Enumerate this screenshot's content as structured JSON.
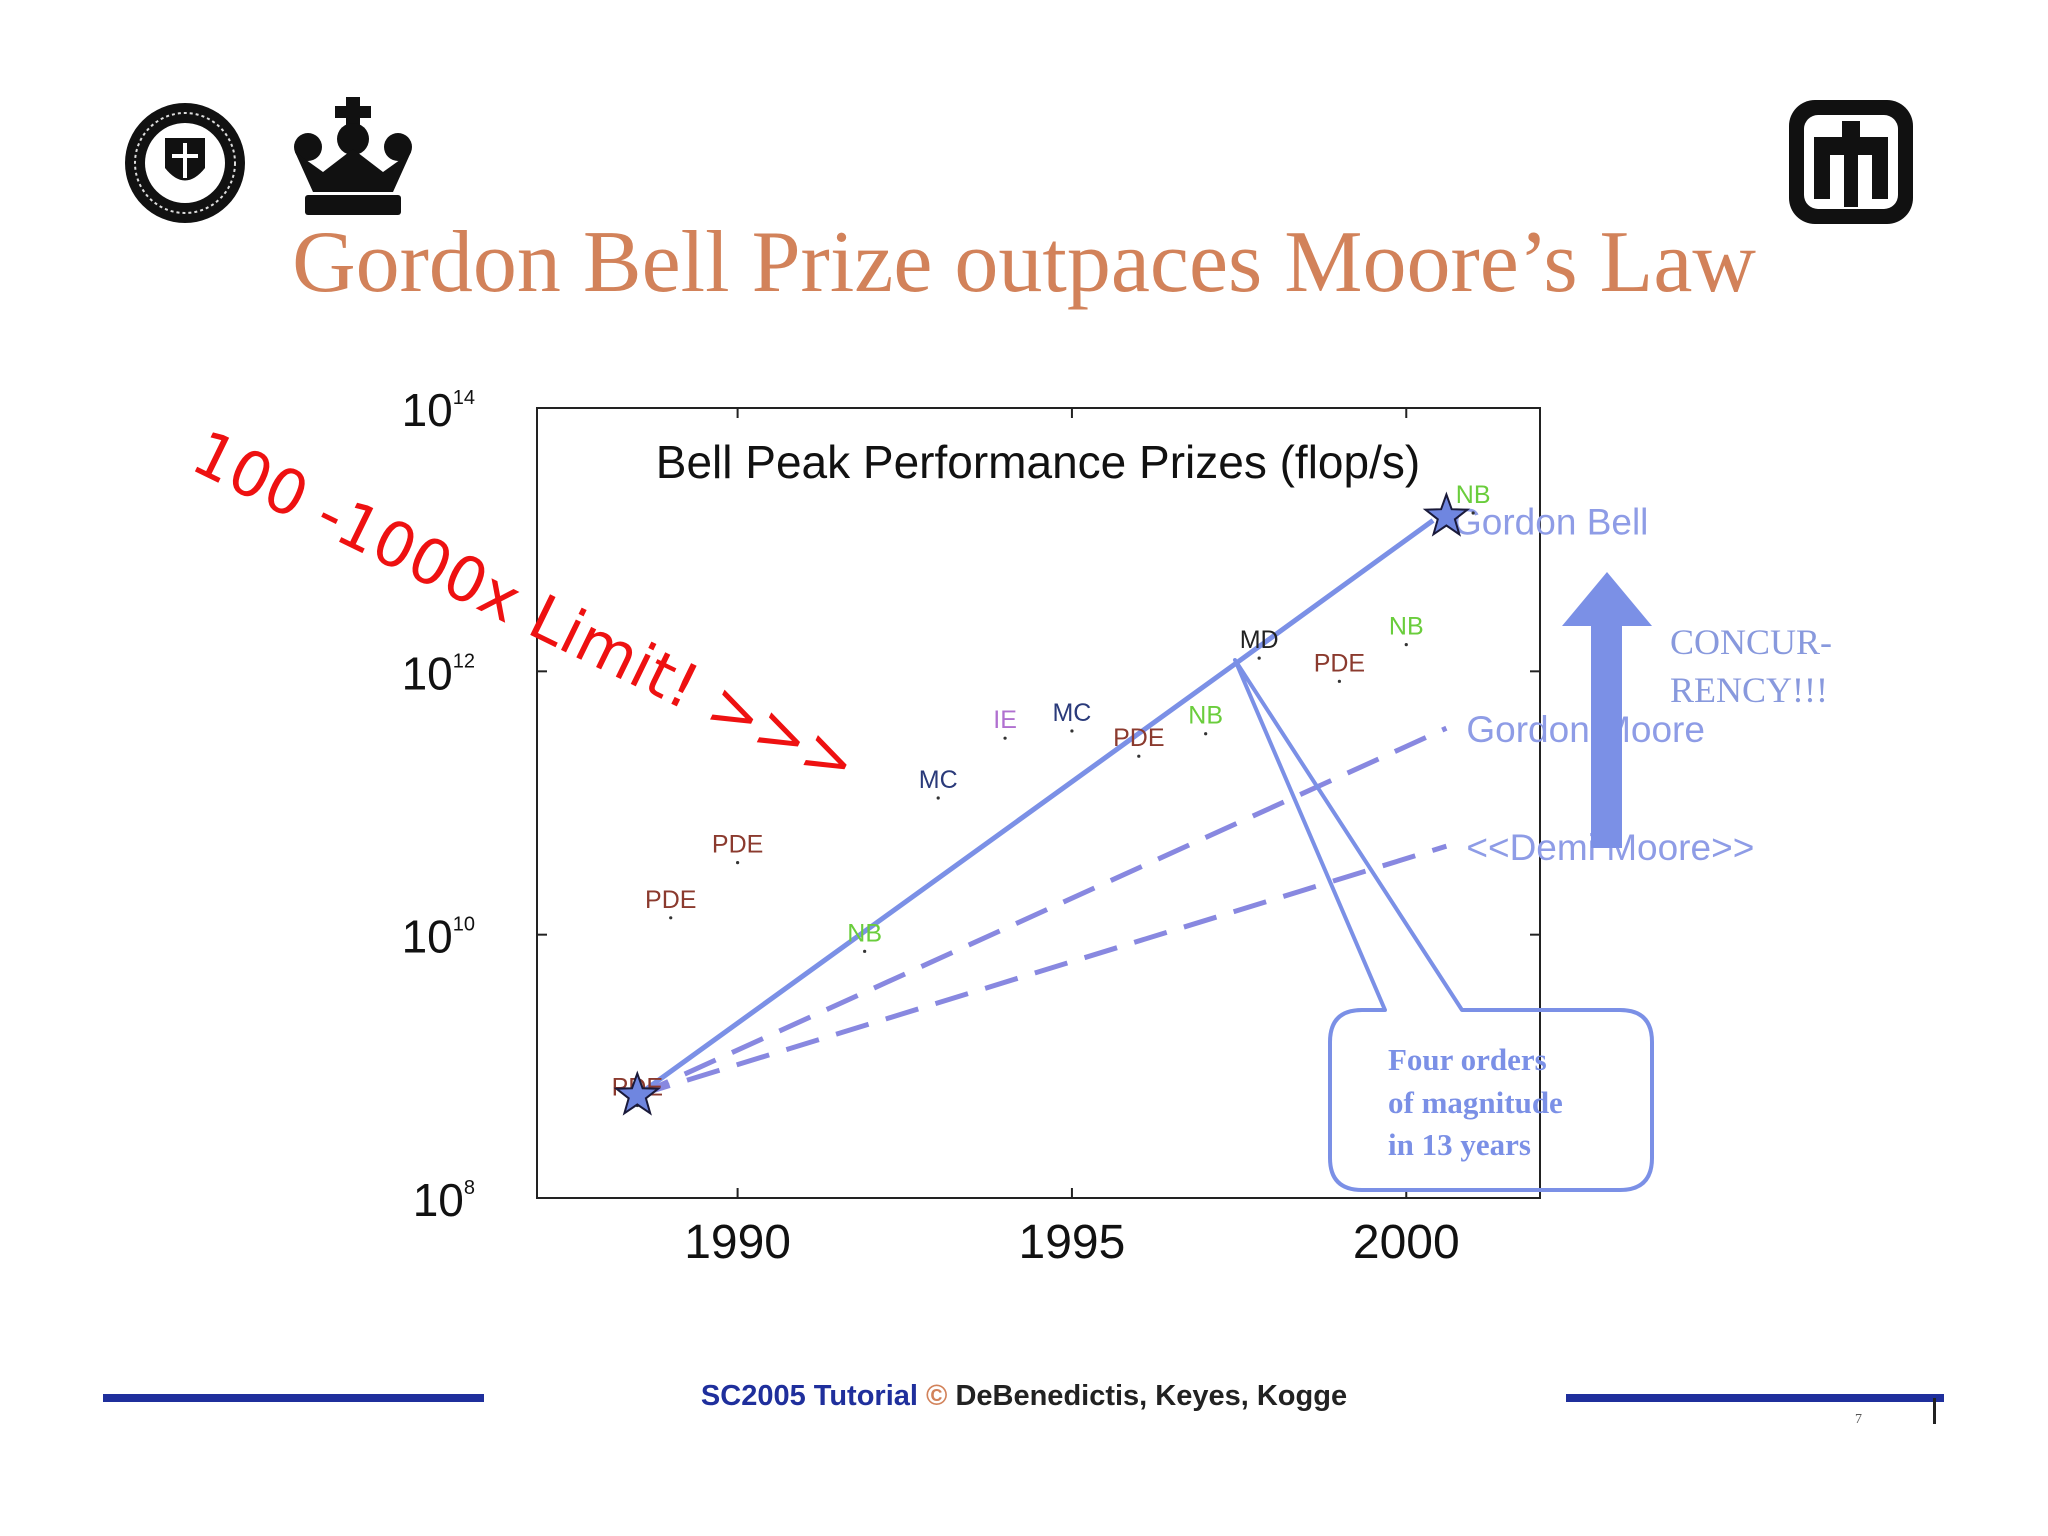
{
  "slide": {
    "title": "Gordon Bell Prize outpaces Moore’s Law",
    "footer": {
      "event": "SC2005 Tutorial",
      "copyright_symbol": "©",
      "authors": "DeBenedictis, Keyes, Kogge"
    },
    "page_number": "7",
    "logos": [
      "notre-dame-seal-icon",
      "columbia-crown-icon",
      "sandia-thunderbird-icon"
    ]
  },
  "chart_data": {
    "type": "scatter",
    "title": "Bell Peak Performance Prizes (flop/s)",
    "xlabel": "",
    "ylabel": "",
    "y_scale": "log",
    "xlim": [
      1987,
      2002
    ],
    "ylim": [
      100000000.0,
      100000000000000.0
    ],
    "x_ticks": [
      "1990",
      "1995",
      "2000"
    ],
    "y_ticks": [
      {
        "base": "10",
        "exp": "14"
      },
      {
        "base": "10",
        "exp": "12"
      },
      {
        "base": "10",
        "exp": "10"
      },
      {
        "base": "10",
        "exp": "8"
      }
    ],
    "points": [
      {
        "label": "PDE",
        "x": 1988.5,
        "y": 600000000.0,
        "color": "#8b3a2e"
      },
      {
        "label": "PDE",
        "x": 1989.0,
        "y": 16000000000.0,
        "color": "#8b3a2e"
      },
      {
        "label": "PDE",
        "x": 1990.0,
        "y": 42000000000.0,
        "color": "#8b3a2e"
      },
      {
        "label": "NB",
        "x": 1991.9,
        "y": 8900000000.0,
        "color": "#6acd3c"
      },
      {
        "label": "MC",
        "x": 1993.0,
        "y": 130000000000.0,
        "color": "#2a3a7a"
      },
      {
        "label": "IE",
        "x": 1994.0,
        "y": 370000000000.0,
        "color": "#b070d0"
      },
      {
        "label": "MC",
        "x": 1995.0,
        "y": 420000000000.0,
        "color": "#2a3a7a"
      },
      {
        "label": "PDE",
        "x": 1996.0,
        "y": 270000000000.0,
        "color": "#8b3a2e"
      },
      {
        "label": "NB",
        "x": 1997.0,
        "y": 400000000000.0,
        "color": "#6acd3c"
      },
      {
        "label": "MD",
        "x": 1997.8,
        "y": 1500000000000.0,
        "color": "#222222"
      },
      {
        "label": "PDE",
        "x": 1999.0,
        "y": 1000000000000.0,
        "color": "#8b3a2e"
      },
      {
        "label": "NB",
        "x": 2000.0,
        "y": 1900000000000.0,
        "color": "#6acd3c"
      },
      {
        "label": "NB",
        "x": 2001.0,
        "y": 19000000000000.0,
        "color": "#6acd3c"
      }
    ],
    "stars": [
      {
        "x": 1988.5,
        "y": 600000000.0
      },
      {
        "x": 2000.6,
        "y": 15000000000000.0
      }
    ],
    "series": [
      {
        "name": "Gordon Bell",
        "style": "solid",
        "color": "#7b90e6",
        "points": [
          [
            1988.5,
            600000000.0
          ],
          [
            1997.4,
            1100000000000.0
          ],
          [
            2000.4,
            14000000000000.0
          ]
        ]
      },
      {
        "name": "Gordon Moore",
        "style": "dashed",
        "color": "#8888e0",
        "points": [
          [
            1988.5,
            600000000.0
          ],
          [
            2000.6,
            370000000000.0
          ]
        ]
      },
      {
        "name": "<<Demi Moore>>",
        "style": "dashed",
        "color": "#8888e0",
        "points": [
          [
            1988.5,
            600000000.0
          ],
          [
            2000.6,
            47000000000.0
          ]
        ]
      }
    ],
    "annotations": {
      "limit": "100 -1000x Limit! >>>",
      "concurrency_line1": "CONCUR-",
      "concurrency_line2": "RENCY!!!",
      "callout_line1": "Four orders",
      "callout_line2": "of magnitude",
      "callout_line3": "in 13 years"
    },
    "grid": false,
    "legend": "none"
  }
}
